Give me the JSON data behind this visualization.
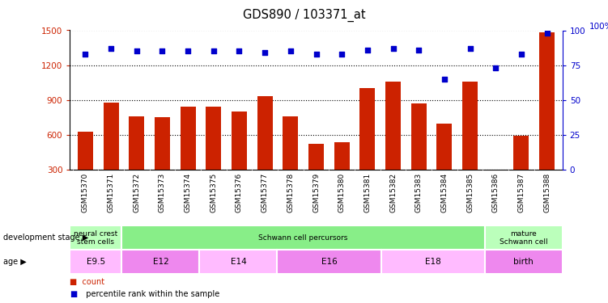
{
  "title": "GDS890 / 103371_at",
  "samples": [
    "GSM15370",
    "GSM15371",
    "GSM15372",
    "GSM15373",
    "GSM15374",
    "GSM15375",
    "GSM15376",
    "GSM15377",
    "GSM15378",
    "GSM15379",
    "GSM15380",
    "GSM15381",
    "GSM15382",
    "GSM15383",
    "GSM15384",
    "GSM15385",
    "GSM15386",
    "GSM15387",
    "GSM15388"
  ],
  "counts": [
    630,
    880,
    760,
    750,
    840,
    840,
    800,
    930,
    760,
    520,
    540,
    1000,
    1060,
    870,
    700,
    1060,
    270,
    590,
    1480
  ],
  "percentiles": [
    83,
    87,
    85,
    85,
    85,
    85,
    85,
    84,
    85,
    83,
    83,
    86,
    87,
    86,
    65,
    87,
    73,
    83,
    98
  ],
  "ylim_left": [
    300,
    1500
  ],
  "ylim_right": [
    0,
    100
  ],
  "yticks_left": [
    300,
    600,
    900,
    1200,
    1500
  ],
  "yticks_right": [
    0,
    25,
    50,
    75,
    100
  ],
  "bar_color": "#cc2200",
  "dot_color": "#0000cc",
  "dev_stage_groups": [
    {
      "label": "neural crest\nstem cells",
      "start": 0,
      "end": 2,
      "color": "#bbffbb"
    },
    {
      "label": "Schwann cell percursors",
      "start": 2,
      "end": 16,
      "color": "#88ee88"
    },
    {
      "label": "mature\nSchwann cell",
      "start": 16,
      "end": 19,
      "color": "#bbffbb"
    }
  ],
  "age_groups": [
    {
      "label": "E9.5",
      "start": 0,
      "end": 2,
      "color": "#ffbbff"
    },
    {
      "label": "E12",
      "start": 2,
      "end": 5,
      "color": "#ee88ee"
    },
    {
      "label": "E14",
      "start": 5,
      "end": 8,
      "color": "#ffbbff"
    },
    {
      "label": "E16",
      "start": 8,
      "end": 12,
      "color": "#ee88ee"
    },
    {
      "label": "E18",
      "start": 12,
      "end": 16,
      "color": "#ffbbff"
    },
    {
      "label": "birth",
      "start": 16,
      "end": 19,
      "color": "#ee88ee"
    }
  ],
  "legend_count_label": "count",
  "legend_pct_label": "percentile rank within the sample",
  "dev_stage_label": "development stage",
  "age_label": "age",
  "xtick_bg_color": "#cccccc",
  "plot_bg_color": "#ffffff"
}
